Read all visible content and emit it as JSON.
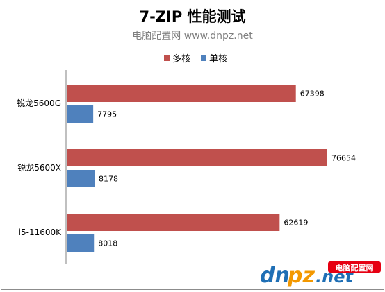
{
  "chart_data": {
    "type": "bar",
    "orientation": "horizontal",
    "title": "7-ZIP 性能测试",
    "subtitle": "电脑配置网 www.dnpz.net",
    "legend_position": "top",
    "categories": [
      "锐龙5600G",
      "锐龙5600X",
      "i5-11600K"
    ],
    "series": [
      {
        "name": "多核",
        "color": "#c0504d",
        "values": [
          67398,
          76654,
          62619
        ]
      },
      {
        "name": "单核",
        "color": "#4f81bd",
        "values": [
          7795,
          8178,
          8018
        ]
      }
    ],
    "xlim": [
      0,
      90000
    ],
    "grid": false
  },
  "watermark": {
    "brand_a": "dn",
    "brand_b": "pz",
    "brand_c": ".net",
    "badge": "电脑配置网"
  }
}
